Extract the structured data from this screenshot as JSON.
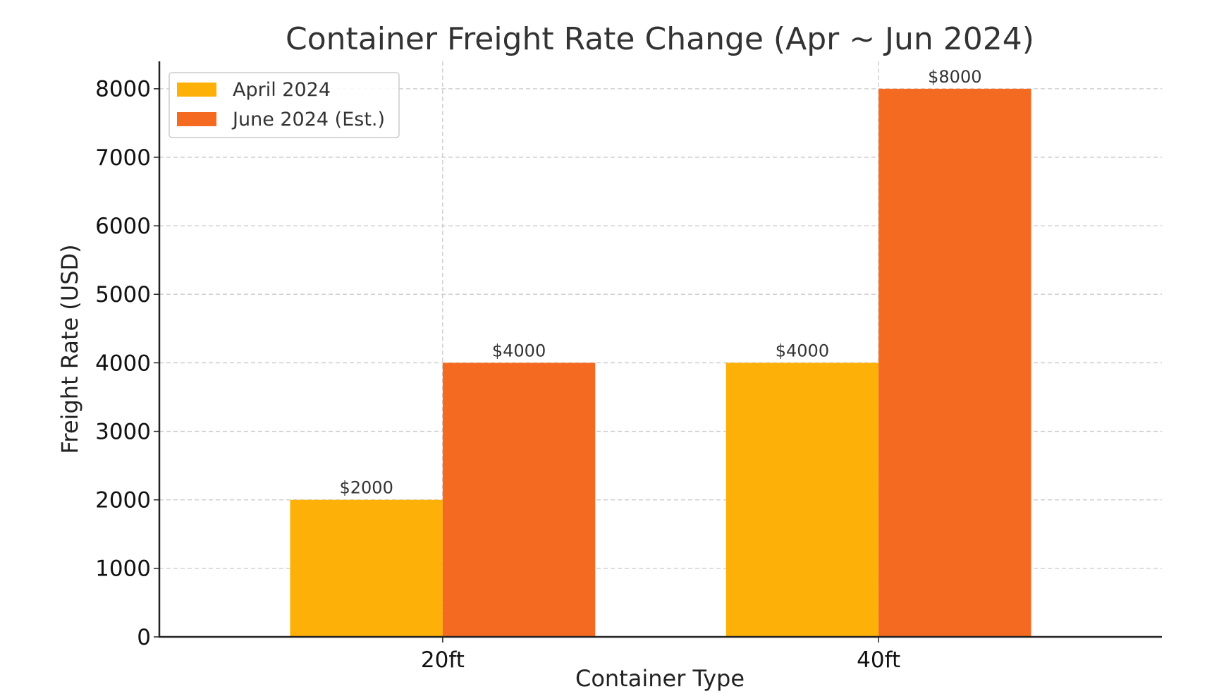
{
  "chart_data": {
    "type": "bar",
    "title": "Container Freight Rate Change (Apr ~ Jun 2024)",
    "xlabel": "Container Type",
    "ylabel": "Freight Rate (USD)",
    "categories": [
      "20ft",
      "40ft"
    ],
    "series": [
      {
        "name": "April 2024",
        "values": [
          2000,
          4000
        ],
        "labels": [
          "$2000",
          "$4000"
        ],
        "color": "#FDB007"
      },
      {
        "name": "June 2024 (Est.)",
        "values": [
          4000,
          8000
        ],
        "labels": [
          "$4000",
          "$8000"
        ],
        "color": "#F56A21"
      }
    ],
    "ylim": [
      0,
      8400
    ],
    "yticks": [
      0,
      1000,
      2000,
      3000,
      4000,
      5000,
      6000,
      7000,
      8000
    ],
    "ytick_labels": [
      "0",
      "1000",
      "2000",
      "3000",
      "4000",
      "5000",
      "6000",
      "7000",
      "8000"
    ],
    "grid": true,
    "legend_position": "top-left"
  }
}
